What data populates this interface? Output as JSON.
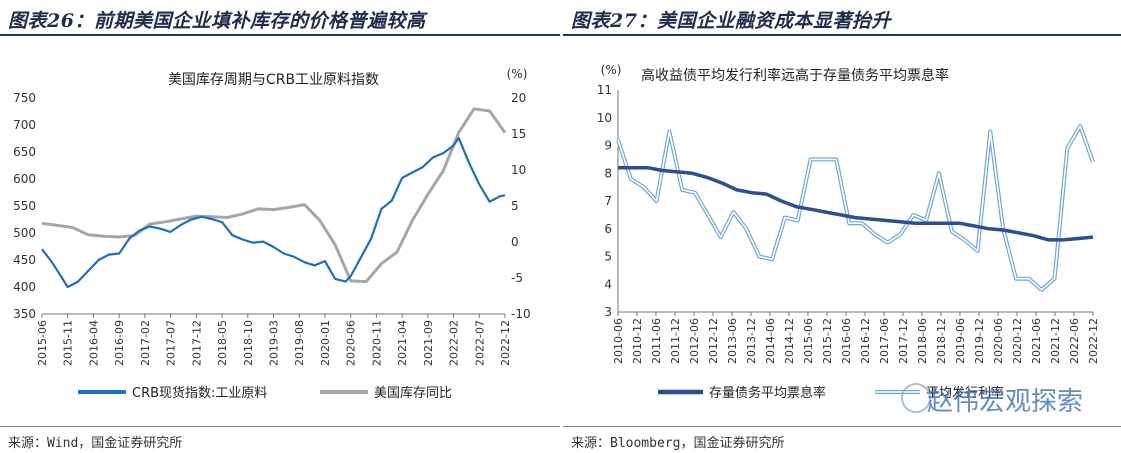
{
  "figures": {
    "left": {
      "title": "图表26：前期美国企业填补库存的价格普遍较高",
      "source": "来源：Wind，国金证券研究所"
    },
    "right": {
      "title": "图表27：美国企业融资成本显著抬升",
      "source": "来源：Bloomberg，国金证券研究所"
    }
  },
  "watermark": "赵伟宏观探索",
  "chart_data": [
    {
      "type": "line",
      "title": "美国库存周期与CRB工业原料指数",
      "ylabel_right": "(%)",
      "ylim": [
        350,
        750
      ],
      "ylim_right": [
        -10,
        20
      ],
      "yticks": [
        350,
        400,
        450,
        500,
        550,
        600,
        650,
        700,
        750
      ],
      "yticks_right": [
        -10,
        -5,
        0,
        5,
        10,
        15,
        20
      ],
      "xticks": [
        "2015-06",
        "2015-11",
        "2016-04",
        "2016-09",
        "2017-02",
        "2017-07",
        "2017-12",
        "2018-05",
        "2018-10",
        "2019-03",
        "2019-08",
        "2020-01",
        "2020-06",
        "2020-11",
        "2021-04",
        "2021-09",
        "2022-02",
        "2022-07",
        "2022-12"
      ],
      "grid": false,
      "legend_position": "bottom",
      "series": [
        {
          "name": "CRB现货指数:工业原料",
          "axis": "left",
          "color": "#1f6fbf",
          "x": [
            "2015-06",
            "2015-08",
            "2015-10",
            "2015-11",
            "2016-01",
            "2016-03",
            "2016-05",
            "2016-07",
            "2016-09",
            "2016-11",
            "2017-01",
            "2017-03",
            "2017-05",
            "2017-07",
            "2017-09",
            "2017-11",
            "2018-01",
            "2018-03",
            "2018-05",
            "2018-07",
            "2018-09",
            "2018-11",
            "2019-01",
            "2019-03",
            "2019-05",
            "2019-07",
            "2019-09",
            "2019-11",
            "2020-01",
            "2020-03",
            "2020-05",
            "2020-06",
            "2020-08",
            "2020-10",
            "2020-12",
            "2021-02",
            "2021-04",
            "2021-06",
            "2021-08",
            "2021-10",
            "2021-12",
            "2022-02",
            "2022-03",
            "2022-05",
            "2022-07",
            "2022-09",
            "2022-11",
            "2022-12"
          ],
          "values": [
            470,
            445,
            415,
            400,
            410,
            430,
            450,
            460,
            462,
            490,
            505,
            512,
            508,
            502,
            515,
            525,
            530,
            526,
            520,
            496,
            488,
            482,
            484,
            474,
            462,
            456,
            446,
            440,
            448,
            415,
            410,
            420,
            455,
            490,
            545,
            560,
            602,
            612,
            622,
            640,
            648,
            662,
            676,
            630,
            590,
            558,
            568,
            570
          ]
        },
        {
          "name": "美国库存同比",
          "axis": "right",
          "color": "#a6a6a6",
          "x": [
            "2015-06",
            "2015-09",
            "2015-12",
            "2016-03",
            "2016-06",
            "2016-09",
            "2016-12",
            "2017-03",
            "2017-06",
            "2017-09",
            "2017-12",
            "2018-03",
            "2018-06",
            "2018-09",
            "2018-12",
            "2019-03",
            "2019-06",
            "2019-09",
            "2019-12",
            "2020-03",
            "2020-06",
            "2020-09",
            "2020-12",
            "2021-03",
            "2021-06",
            "2021-09",
            "2021-12",
            "2022-03",
            "2022-06",
            "2022-09",
            "2022-12"
          ],
          "values": [
            2.6,
            2.3,
            2.0,
            1.0,
            0.8,
            0.7,
            0.9,
            2.5,
            2.8,
            3.2,
            3.6,
            3.5,
            3.4,
            3.9,
            4.6,
            4.5,
            4.8,
            5.2,
            3.0,
            -0.4,
            -5.4,
            -5.5,
            -3.0,
            -1.4,
            3.0,
            6.6,
            9.9,
            15.2,
            18.5,
            18.2,
            15.2
          ]
        }
      ]
    },
    {
      "type": "line",
      "title": "高收益债平均发行利率远高于存量债务平均票息率",
      "ylabel": "(%)",
      "ylim": [
        3,
        11
      ],
      "yticks": [
        3,
        4,
        5,
        6,
        7,
        8,
        9,
        10,
        11
      ],
      "xticks": [
        "2010-06",
        "2010-12",
        "2011-06",
        "2011-12",
        "2012-06",
        "2012-12",
        "2013-06",
        "2013-12",
        "2014-06",
        "2014-12",
        "2015-06",
        "2015-12",
        "2016-06",
        "2016-12",
        "2017-06",
        "2017-12",
        "2018-06",
        "2018-12",
        "2019-06",
        "2019-12",
        "2020-06",
        "2020-12",
        "2021-06",
        "2021-12",
        "2022-06",
        "2022-12"
      ],
      "grid": false,
      "legend_position": "bottom",
      "series": [
        {
          "name": "存量债务平均票息率",
          "color": "#2e4e8f",
          "values": [
            8.2,
            8.2,
            8.2,
            8.1,
            8.05,
            8.0,
            7.85,
            7.65,
            7.4,
            7.3,
            7.25,
            7.0,
            6.8,
            6.7,
            6.6,
            6.5,
            6.4,
            6.35,
            6.3,
            6.25,
            6.2,
            6.2,
            6.2,
            6.2,
            6.1,
            6.0,
            5.95,
            5.85,
            5.75,
            5.6,
            5.6,
            5.65,
            5.7
          ]
        },
        {
          "name": "平均发行利率",
          "color": "#6fa8dc",
          "values": [
            9.2,
            7.8,
            7.5,
            7.0,
            9.5,
            7.4,
            7.3,
            6.5,
            5.7,
            6.6,
            6.0,
            5.0,
            4.9,
            6.4,
            6.3,
            8.5,
            8.5,
            8.5,
            6.2,
            6.2,
            5.8,
            5.5,
            5.8,
            6.5,
            6.3,
            8.0,
            5.9,
            5.6,
            5.2,
            9.5,
            6.0,
            4.2,
            4.2,
            3.8,
            4.2,
            8.9,
            9.7,
            8.4
          ]
        }
      ]
    }
  ]
}
